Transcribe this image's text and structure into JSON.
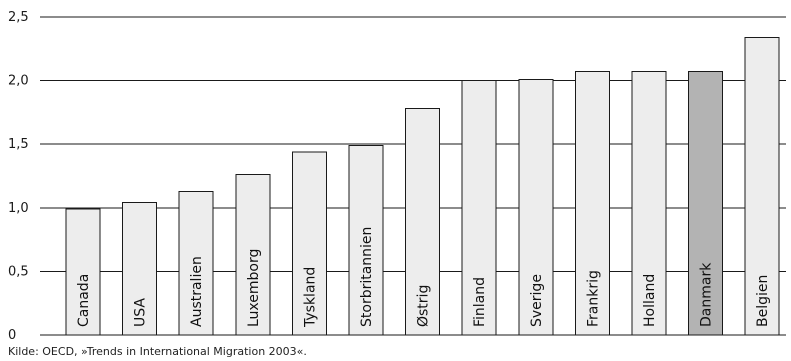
{
  "chart_data": {
    "type": "bar",
    "categories": [
      "Canada",
      "USA",
      "Australien",
      "Luxemborg",
      "Tyskland",
      "Storbritannien",
      "Østrig",
      "Finland",
      "Sverige",
      "Frankrig",
      "Holland",
      "Danmark",
      "Belgien"
    ],
    "values": [
      0.99,
      1.04,
      1.13,
      1.26,
      1.44,
      1.49,
      1.78,
      2.0,
      2.01,
      2.07,
      2.07,
      2.07,
      2.34
    ],
    "highlight": "Danmark",
    "ylim": [
      0,
      2.5
    ],
    "yticks": [
      0,
      0.5,
      1.0,
      1.5,
      2.0,
      2.5
    ],
    "ytick_labels": [
      "0",
      "0,5",
      "1,0",
      "1,5",
      "2,0",
      "2,5"
    ],
    "grid": true,
    "title": "",
    "xlabel": "",
    "ylabel": "",
    "colors": {
      "bar": "#ededed",
      "bar_highlight": "#b3b3b3",
      "bar_stroke": "#1a1a1a",
      "grid": "#1a1a1a"
    }
  },
  "source": "Kilde: OECD, »Trends in International Migration 2003«."
}
